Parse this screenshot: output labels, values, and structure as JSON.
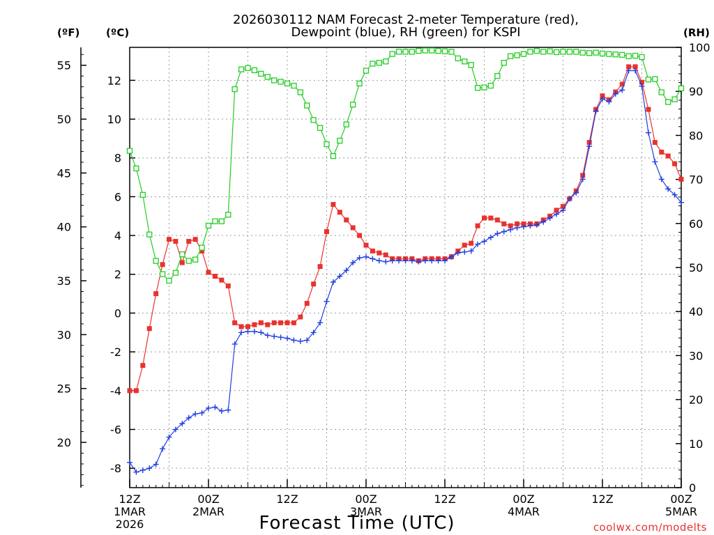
{
  "chart_data": {
    "type": "line",
    "title_lines": [
      "2026030112 NAM Forecast 2-meter Temperature (red),",
      "Dewpoint (blue), RH (green) for KSPI"
    ],
    "xlabel": "Forecast Time (UTC)",
    "credit": "coolwx.com/modelts",
    "units": {
      "fahrenheit": "(ºF)",
      "celsius": "(ºC)",
      "rh": "(RH)"
    },
    "x_tick_labels": [
      {
        "hour": 0,
        "lines": [
          "12Z",
          "1MAR",
          "2026"
        ]
      },
      {
        "hour": 12,
        "lines": [
          "00Z",
          "2MAR"
        ]
      },
      {
        "hour": 24,
        "lines": [
          "12Z"
        ]
      },
      {
        "hour": 36,
        "lines": [
          "00Z",
          "3MAR"
        ]
      },
      {
        "hour": 48,
        "lines": [
          "12Z"
        ]
      },
      {
        "hour": 60,
        "lines": [
          "00Z",
          "4MAR"
        ]
      },
      {
        "hour": 72,
        "lines": [
          "12Z"
        ]
      },
      {
        "hour": 84,
        "lines": [
          "00Z",
          "5MAR"
        ]
      }
    ],
    "xlim": [
      0,
      84
    ],
    "celsius_axis": {
      "ylim": [
        -9,
        13.7
      ],
      "ticks": [
        -8,
        -6,
        -4,
        -2,
        0,
        2,
        4,
        6,
        8,
        10,
        12
      ]
    },
    "fahrenheit_axis": {
      "ticks": [
        20,
        25,
        30,
        35,
        40,
        45,
        50,
        55
      ]
    },
    "rh_axis": {
      "ylim": [
        0,
        100
      ],
      "ticks": [
        0,
        10,
        20,
        30,
        40,
        50,
        60,
        70,
        80,
        90,
        100
      ]
    },
    "colors": {
      "temperature": "#e8322e",
      "dewpoint": "#1f3fe0",
      "rh": "#22cc22",
      "grid": "#9a9a9a"
    },
    "series": [
      {
        "name": "Temperature",
        "unit": "C",
        "marker": "filled-square",
        "points": [
          [
            0,
            -4.0
          ],
          [
            1,
            -4.0
          ],
          [
            2,
            -2.7
          ],
          [
            3,
            -0.8
          ],
          [
            4,
            1.0
          ],
          [
            5,
            2.5
          ],
          [
            6,
            3.8
          ],
          [
            7,
            3.7
          ],
          [
            8,
            2.6
          ],
          [
            9,
            3.7
          ],
          [
            10,
            3.8
          ],
          [
            11,
            3.2
          ],
          [
            12,
            2.1
          ],
          [
            13,
            1.9
          ],
          [
            14,
            1.7
          ],
          [
            15,
            1.4
          ],
          [
            16,
            -0.5
          ],
          [
            17,
            -0.7
          ],
          [
            18,
            -0.7
          ],
          [
            19,
            -0.6
          ],
          [
            20,
            -0.5
          ],
          [
            21,
            -0.6
          ],
          [
            22,
            -0.5
          ],
          [
            23,
            -0.5
          ],
          [
            24,
            -0.5
          ],
          [
            25,
            -0.5
          ],
          [
            26,
            -0.2
          ],
          [
            27,
            0.5
          ],
          [
            28,
            1.5
          ],
          [
            29,
            2.4
          ],
          [
            30,
            4.2
          ],
          [
            31,
            5.6
          ],
          [
            32,
            5.2
          ],
          [
            33,
            4.8
          ],
          [
            34,
            4.4
          ],
          [
            35,
            4.0
          ],
          [
            36,
            3.5
          ],
          [
            37,
            3.2
          ],
          [
            38,
            3.1
          ],
          [
            39,
            3.0
          ],
          [
            40,
            2.8
          ],
          [
            41,
            2.8
          ],
          [
            42,
            2.8
          ],
          [
            43,
            2.8
          ],
          [
            44,
            2.7
          ],
          [
            45,
            2.8
          ],
          [
            46,
            2.8
          ],
          [
            47,
            2.8
          ],
          [
            48,
            2.8
          ],
          [
            49,
            2.9
          ],
          [
            50,
            3.2
          ],
          [
            51,
            3.5
          ],
          [
            52,
            3.6
          ],
          [
            53,
            4.5
          ],
          [
            54,
            4.9
          ],
          [
            55,
            4.9
          ],
          [
            56,
            4.8
          ],
          [
            57,
            4.6
          ],
          [
            58,
            4.5
          ],
          [
            59,
            4.6
          ],
          [
            60,
            4.6
          ],
          [
            61,
            4.6
          ],
          [
            62,
            4.6
          ],
          [
            63,
            4.8
          ],
          [
            64,
            5.0
          ],
          [
            65,
            5.3
          ],
          [
            66,
            5.5
          ],
          [
            67,
            5.9
          ],
          [
            68,
            6.3
          ],
          [
            69,
            7.1
          ],
          [
            70,
            8.8
          ],
          [
            71,
            10.5
          ],
          [
            72,
            11.2
          ],
          [
            73,
            11.0
          ],
          [
            74,
            11.4
          ],
          [
            75,
            11.8
          ],
          [
            76,
            12.7
          ],
          [
            77,
            12.7
          ],
          [
            78,
            11.9
          ],
          [
            79,
            10.5
          ],
          [
            80,
            8.8
          ],
          [
            81,
            8.3
          ],
          [
            82,
            8.1
          ],
          [
            83,
            7.7
          ],
          [
            84,
            6.9
          ]
        ]
      },
      {
        "name": "Dewpoint",
        "unit": "C",
        "marker": "plus",
        "points": [
          [
            0,
            -7.7
          ],
          [
            1,
            -8.2
          ],
          [
            2,
            -8.1
          ],
          [
            3,
            -8.0
          ],
          [
            4,
            -7.8
          ],
          [
            5,
            -7.0
          ],
          [
            6,
            -6.4
          ],
          [
            7,
            -6.0
          ],
          [
            8,
            -5.7
          ],
          [
            9,
            -5.4
          ],
          [
            10,
            -5.2
          ],
          [
            11,
            -5.15
          ],
          [
            12,
            -4.9
          ],
          [
            13,
            -4.85
          ],
          [
            14,
            -5.05
          ],
          [
            15,
            -5.0
          ],
          [
            16,
            -1.6
          ],
          [
            17,
            -1.0
          ],
          [
            18,
            -0.95
          ],
          [
            19,
            -0.95
          ],
          [
            20,
            -1.0
          ],
          [
            21,
            -1.15
          ],
          [
            22,
            -1.2
          ],
          [
            23,
            -1.25
          ],
          [
            24,
            -1.3
          ],
          [
            25,
            -1.4
          ],
          [
            26,
            -1.45
          ],
          [
            27,
            -1.4
          ],
          [
            28,
            -1.0
          ],
          [
            29,
            -0.5
          ],
          [
            30,
            0.6
          ],
          [
            31,
            1.6
          ],
          [
            32,
            1.9
          ],
          [
            33,
            2.2
          ],
          [
            34,
            2.6
          ],
          [
            35,
            2.85
          ],
          [
            36,
            2.9
          ],
          [
            37,
            2.8
          ],
          [
            38,
            2.7
          ],
          [
            39,
            2.65
          ],
          [
            40,
            2.7
          ],
          [
            41,
            2.7
          ],
          [
            42,
            2.7
          ],
          [
            43,
            2.7
          ],
          [
            44,
            2.65
          ],
          [
            45,
            2.7
          ],
          [
            46,
            2.7
          ],
          [
            47,
            2.7
          ],
          [
            48,
            2.7
          ],
          [
            49,
            2.9
          ],
          [
            50,
            3.1
          ],
          [
            51,
            3.15
          ],
          [
            52,
            3.2
          ],
          [
            53,
            3.55
          ],
          [
            54,
            3.7
          ],
          [
            55,
            3.9
          ],
          [
            56,
            4.1
          ],
          [
            57,
            4.2
          ],
          [
            58,
            4.3
          ],
          [
            59,
            4.4
          ],
          [
            60,
            4.45
          ],
          [
            61,
            4.5
          ],
          [
            62,
            4.55
          ],
          [
            63,
            4.7
          ],
          [
            64,
            4.9
          ],
          [
            65,
            5.1
          ],
          [
            66,
            5.3
          ],
          [
            67,
            5.9
          ],
          [
            68,
            6.2
          ],
          [
            69,
            6.9
          ],
          [
            70,
            8.6
          ],
          [
            71,
            10.4
          ],
          [
            72,
            11.05
          ],
          [
            73,
            10.9
          ],
          [
            74,
            11.3
          ],
          [
            75,
            11.5
          ],
          [
            76,
            12.5
          ],
          [
            77,
            12.5
          ],
          [
            78,
            11.7
          ],
          [
            79,
            9.3
          ],
          [
            80,
            7.8
          ],
          [
            81,
            6.9
          ],
          [
            82,
            6.4
          ],
          [
            83,
            6.1
          ],
          [
            84,
            5.7
          ]
        ]
      },
      {
        "name": "RH",
        "unit": "%",
        "marker": "open-square",
        "points": [
          [
            0,
            76.5
          ],
          [
            1,
            72.5
          ],
          [
            2,
            66.5
          ],
          [
            3,
            57.5
          ],
          [
            4,
            51.5
          ],
          [
            5,
            48.5
          ],
          [
            6,
            47.0
          ],
          [
            7,
            48.8
          ],
          [
            8,
            53.0
          ],
          [
            9,
            51.5
          ],
          [
            10,
            51.8
          ],
          [
            11,
            54.5
          ],
          [
            12,
            59.5
          ],
          [
            13,
            60.5
          ],
          [
            14,
            60.5
          ],
          [
            15,
            62.0
          ],
          [
            16,
            90.5
          ],
          [
            17,
            95.0
          ],
          [
            18,
            95.3
          ],
          [
            19,
            94.8
          ],
          [
            20,
            94.0
          ],
          [
            21,
            93.3
          ],
          [
            22,
            92.5
          ],
          [
            23,
            92.2
          ],
          [
            24,
            91.8
          ],
          [
            25,
            91.3
          ],
          [
            26,
            89.8
          ],
          [
            27,
            86.8
          ],
          [
            28,
            83.5
          ],
          [
            29,
            81.7
          ],
          [
            30,
            78.0
          ],
          [
            31,
            75.3
          ],
          [
            32,
            78.8
          ],
          [
            33,
            82.5
          ],
          [
            34,
            87.0
          ],
          [
            35,
            91.8
          ],
          [
            36,
            94.7
          ],
          [
            37,
            96.3
          ],
          [
            38,
            96.5
          ],
          [
            39,
            96.8
          ],
          [
            40,
            98.5
          ],
          [
            41,
            99.0
          ],
          [
            42,
            99.0
          ],
          [
            43,
            99.0
          ],
          [
            44,
            99.2
          ],
          [
            45,
            99.3
          ],
          [
            46,
            99.3
          ],
          [
            47,
            99.2
          ],
          [
            48,
            99.1
          ],
          [
            49,
            99.0
          ],
          [
            50,
            97.5
          ],
          [
            51,
            96.8
          ],
          [
            52,
            96.0
          ],
          [
            53,
            90.8
          ],
          [
            54,
            90.9
          ],
          [
            55,
            91.3
          ],
          [
            56,
            93.5
          ],
          [
            57,
            96.5
          ],
          [
            58,
            98.0
          ],
          [
            59,
            98.2
          ],
          [
            60,
            98.5
          ],
          [
            61,
            99.0
          ],
          [
            62,
            99.2
          ],
          [
            63,
            99.0
          ],
          [
            64,
            99.1
          ],
          [
            65,
            98.9
          ],
          [
            66,
            99.0
          ],
          [
            67,
            99.0
          ],
          [
            68,
            99.0
          ],
          [
            69,
            98.8
          ],
          [
            70,
            98.7
          ],
          [
            71,
            98.8
          ],
          [
            72,
            98.6
          ],
          [
            73,
            98.5
          ],
          [
            74,
            98.4
          ],
          [
            75,
            98.3
          ],
          [
            76,
            98.0
          ],
          [
            77,
            98.1
          ],
          [
            78,
            97.8
          ],
          [
            79,
            92.7
          ],
          [
            80,
            92.8
          ],
          [
            81,
            89.8
          ],
          [
            82,
            87.6
          ],
          [
            83,
            88.2
          ],
          [
            84,
            90.7
          ]
        ]
      }
    ]
  }
}
